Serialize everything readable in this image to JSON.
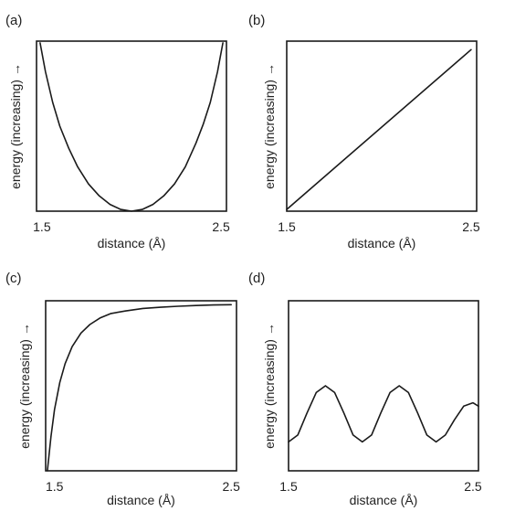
{
  "chart_data": [
    {
      "type": "line",
      "panel": "(a)",
      "xlabel": "distance (Å)",
      "ylabel": "energy (increasing) →",
      "xticks": [
        "1.5",
        "2.5"
      ],
      "xlim": [
        1.47,
        2.53
      ],
      "ylim": [
        0,
        1
      ],
      "grid": false,
      "series": [
        {
          "x": [
            1.49,
            1.52,
            1.56,
            1.6,
            1.65,
            1.7,
            1.76,
            1.82,
            1.88,
            1.94,
            2.0,
            2.06,
            2.12,
            2.18,
            2.24,
            2.3,
            2.36,
            2.4,
            2.44,
            2.48,
            2.51
          ],
          "y": [
            0.99,
            0.82,
            0.64,
            0.5,
            0.37,
            0.26,
            0.16,
            0.09,
            0.04,
            0.01,
            0.0,
            0.01,
            0.04,
            0.09,
            0.16,
            0.26,
            0.4,
            0.51,
            0.64,
            0.82,
            0.99
          ]
        }
      ]
    },
    {
      "type": "line",
      "panel": "(b)",
      "xlabel": "distance (Å)",
      "ylabel": "energy (increasing) →",
      "xticks": [
        "1.5",
        "2.5"
      ],
      "xlim": [
        1.5,
        2.53
      ],
      "ylim": [
        0,
        1
      ],
      "grid": false,
      "series": [
        {
          "x": [
            1.5,
            2.5
          ],
          "y": [
            0.01,
            0.95
          ]
        }
      ]
    },
    {
      "type": "line",
      "panel": "(c)",
      "xlabel": "distance (Å)",
      "ylabel": "energy (increasing) →",
      "xticks": [
        "1.5",
        "2.5"
      ],
      "xlim": [
        1.45,
        2.53
      ],
      "ylim": [
        0,
        1
      ],
      "grid": false,
      "series": [
        {
          "x": [
            1.46,
            1.48,
            1.5,
            1.53,
            1.56,
            1.6,
            1.65,
            1.7,
            1.76,
            1.82,
            1.9,
            2.0,
            2.1,
            2.2,
            2.3,
            2.4,
            2.5
          ],
          "y": [
            0.0,
            0.2,
            0.36,
            0.52,
            0.63,
            0.73,
            0.81,
            0.86,
            0.9,
            0.925,
            0.94,
            0.955,
            0.962,
            0.968,
            0.972,
            0.975,
            0.977
          ]
        }
      ]
    },
    {
      "type": "line",
      "panel": "(d)",
      "xlabel": "distance (Å)",
      "ylabel": "energy (increasing) →",
      "xticks": [
        "1.5",
        "2.5"
      ],
      "xlim": [
        1.5,
        2.53
      ],
      "ylim": [
        0,
        1
      ],
      "grid": false,
      "series": [
        {
          "x": [
            1.5,
            1.55,
            1.6,
            1.65,
            1.7,
            1.75,
            1.8,
            1.85,
            1.9,
            1.95,
            2.0,
            2.05,
            2.1,
            2.15,
            2.2,
            2.25,
            2.3,
            2.35,
            2.4,
            2.45,
            2.5,
            2.53
          ],
          "y": [
            0.17,
            0.21,
            0.34,
            0.46,
            0.5,
            0.46,
            0.34,
            0.21,
            0.17,
            0.21,
            0.34,
            0.46,
            0.5,
            0.46,
            0.34,
            0.21,
            0.17,
            0.21,
            0.3,
            0.38,
            0.4,
            0.38
          ]
        }
      ]
    }
  ]
}
